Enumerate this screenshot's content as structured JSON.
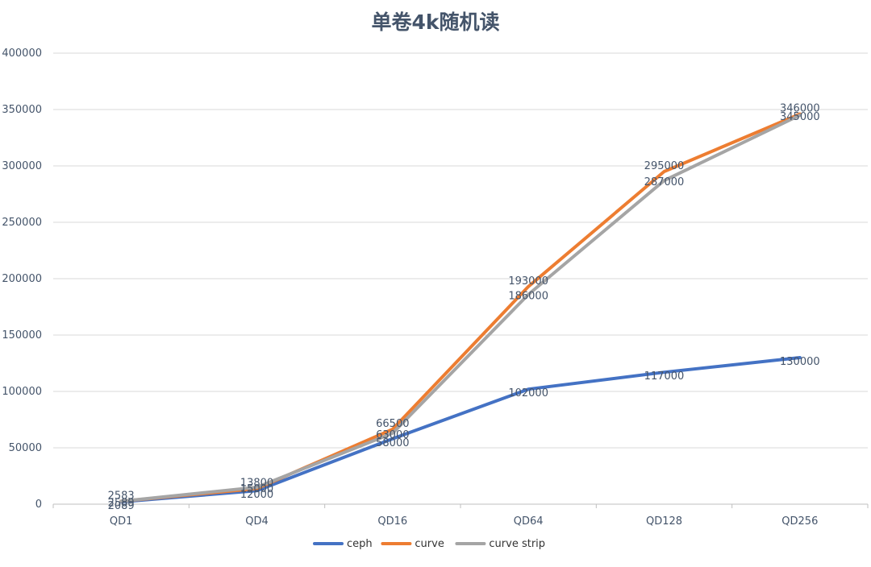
{
  "chart_data": {
    "type": "line",
    "title": "单卷4k随机读",
    "xlabel": "",
    "ylabel": "",
    "categories": [
      "QD1",
      "QD4",
      "QD16",
      "QD64",
      "QD128",
      "QD256"
    ],
    "ylim": [
      0,
      400000
    ],
    "yticks": [
      0,
      50000,
      100000,
      150000,
      200000,
      250000,
      300000,
      350000,
      400000
    ],
    "grid": true,
    "legend_position": "bottom",
    "series": [
      {
        "name": "ceph",
        "color": "#4472c4",
        "values": [
          2089,
          12000,
          58000,
          102000,
          117000,
          130000
        ],
        "labels": [
          "2089",
          "12000",
          "58000",
          "102000",
          "117000",
          "130000"
        ]
      },
      {
        "name": "curve",
        "color": "#ed7d31",
        "values": [
          2583,
          13800,
          66500,
          193000,
          295000,
          346000
        ],
        "labels": [
          "2583",
          "13800",
          "66500",
          "193000",
          "295000",
          "346000"
        ]
      },
      {
        "name": "curve strip",
        "color": "#a5a5a5",
        "values": [
          2589,
          15000,
          63000,
          186000,
          287000,
          345000
        ],
        "labels": [
          "2589",
          "15000",
          "63000",
          "186000",
          "287000",
          "345000"
        ]
      }
    ]
  }
}
